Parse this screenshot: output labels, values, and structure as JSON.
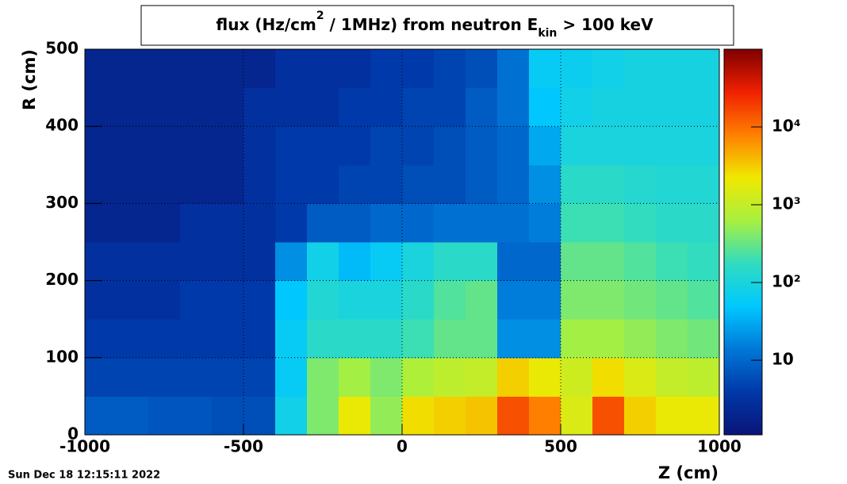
{
  "chart_data": {
    "type": "heatmap",
    "title_parts": [
      "flux (Hz/cm",
      "2",
      " / 1MHz) from   neutron  E",
      "kin",
      " > 100 keV"
    ],
    "x_label": "Z (cm)",
    "y_label": "R (cm)",
    "x_bins": [
      -1000,
      -900,
      -800,
      -700,
      -600,
      -500,
      -400,
      -300,
      -200,
      -100,
      0,
      100,
      200,
      300,
      400,
      500,
      600,
      700,
      800,
      900,
      1000
    ],
    "y_bins": [
      0,
      50,
      100,
      150,
      200,
      250,
      300,
      350,
      400,
      450,
      500
    ],
    "z": [
      [
        8,
        8,
        7,
        7,
        6,
        6,
        80,
        400,
        2000,
        500,
        2500,
        3000,
        3500,
        15000,
        8000,
        1500,
        15000,
        3000,
        2000,
        2000
      ],
      [
        5,
        5,
        5,
        5,
        5,
        5,
        60,
        400,
        600,
        400,
        700,
        900,
        1000,
        3000,
        2000,
        1200,
        2500,
        1500,
        1000,
        900
      ],
      [
        4,
        4,
        4,
        4,
        4,
        4,
        60,
        150,
        150,
        150,
        200,
        300,
        300,
        20,
        20,
        600,
        600,
        500,
        400,
        350
      ],
      [
        3,
        3,
        3,
        4,
        4,
        4,
        50,
        120,
        100,
        100,
        150,
        250,
        300,
        15,
        15,
        400,
        400,
        350,
        300,
        250
      ],
      [
        3,
        3,
        3,
        3,
        3,
        3,
        20,
        80,
        40,
        60,
        100,
        150,
        150,
        10,
        10,
        300,
        300,
        250,
        200,
        180
      ],
      [
        2,
        2,
        2,
        3,
        3,
        3,
        4,
        8,
        8,
        10,
        10,
        12,
        12,
        12,
        15,
        200,
        200,
        180,
        150,
        150
      ],
      [
        2,
        2,
        2,
        2,
        2,
        3,
        4,
        4,
        5,
        5,
        6,
        6,
        8,
        10,
        20,
        150,
        150,
        130,
        120,
        120
      ],
      [
        2,
        2,
        2,
        2,
        2,
        3,
        4,
        4,
        4,
        5,
        5,
        6,
        8,
        10,
        30,
        100,
        100,
        100,
        100,
        100
      ],
      [
        2,
        2,
        2,
        2,
        2,
        3,
        3,
        3,
        4,
        4,
        5,
        5,
        8,
        12,
        50,
        80,
        90,
        90,
        90,
        90
      ],
      [
        2,
        2,
        2,
        2,
        2,
        2,
        3,
        3,
        3,
        4,
        4,
        5,
        6,
        12,
        60,
        70,
        80,
        90,
        90,
        90
      ]
    ],
    "xlim": [
      -1000,
      1000
    ],
    "ylim": [
      0,
      500
    ],
    "xticks": [
      -1000,
      -500,
      0,
      500,
      1000
    ],
    "yticks": [
      0,
      100,
      200,
      300,
      400,
      500
    ],
    "zlim": [
      1.1,
      100000
    ],
    "zlog": true,
    "zticks": [
      10,
      {
        "value": 100,
        "label": "10²"
      },
      {
        "value": 1000,
        "label": "10³"
      },
      {
        "value": 10000,
        "label": "10⁴"
      }
    ],
    "colorscale": [
      "#0a1478",
      "#0038a8",
      "#0078d8",
      "#00c8ff",
      "#30dcc0",
      "#a8f040",
      "#f0e800",
      "#ff8000",
      "#f02000",
      "#800000"
    ],
    "grid": true
  },
  "timestamp": "Sun Dec 18 12:15:11 2022"
}
